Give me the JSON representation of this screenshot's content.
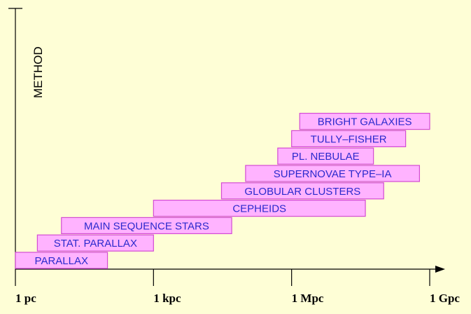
{
  "chart_data": {
    "type": "bar",
    "orientation": "horizontal-range",
    "ylabel": "METHOD",
    "x_scale": "log",
    "x_unit": "pc",
    "x_ticks": [
      {
        "label": "1 pc",
        "value": 1
      },
      {
        "label": "1 kpc",
        "value": 1000
      },
      {
        "label": "1 Mpc",
        "value": 1000000
      },
      {
        "label": "1 Gpc",
        "value": 1000000000
      }
    ],
    "xlim": [
      1,
      1000000000
    ],
    "methods": [
      {
        "name": "PARALLAX",
        "range": [
          1,
          100
        ]
      },
      {
        "name": "STAT. PARALLAX",
        "range": [
          3,
          1000
        ]
      },
      {
        "name": "MAIN SEQUENCE STARS",
        "range": [
          10,
          50000
        ]
      },
      {
        "name": "CEPHEIDS",
        "range": [
          1000,
          40000000
        ]
      },
      {
        "name": "GLOBULAR CLUSTERS",
        "range": [
          30000,
          100000000
        ]
      },
      {
        "name": "SUPERNOVAE TYPE–IA",
        "range": [
          100000,
          600000000
        ]
      },
      {
        "name": "PL. NEBULAE",
        "range": [
          500000,
          60000000
        ]
      },
      {
        "name": "TULLY–FISHER",
        "range": [
          1000000,
          300000000
        ]
      },
      {
        "name": "BRIGHT GALAXIES",
        "range": [
          1500000,
          1000000000
        ]
      }
    ],
    "colors": {
      "background": "#fefed6",
      "bar_fill": "#ffb3ff",
      "bar_stroke": "#d34cd3",
      "bar_text": "#2a2acd",
      "axis": "#000000"
    }
  }
}
